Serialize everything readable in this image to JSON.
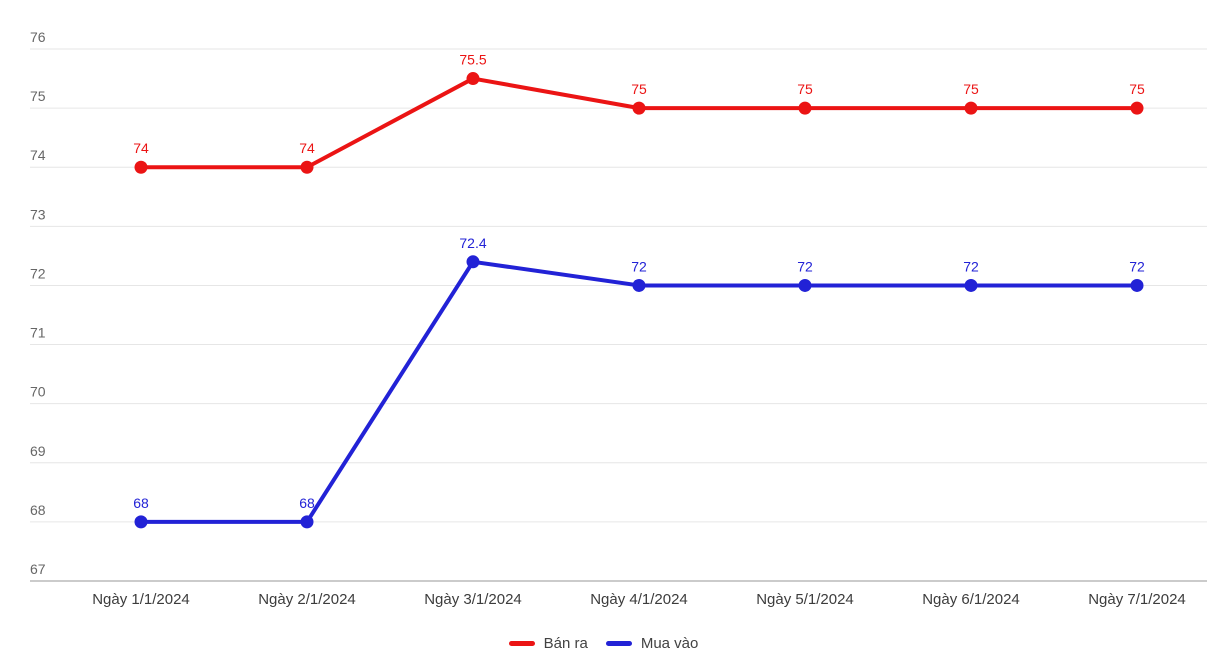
{
  "chart_data": {
    "type": "line",
    "title": "",
    "xlabel": "",
    "ylabel": "",
    "categories": [
      "Ngày 1/1/2024",
      "Ngày 2/1/2024",
      "Ngày 3/1/2024",
      "Ngày 4/1/2024",
      "Ngày 5/1/2024",
      "Ngày 6/1/2024",
      "Ngày 7/1/2024"
    ],
    "series": [
      {
        "name": "Bán ra",
        "color": "#eb1414",
        "values": [
          74,
          74,
          75.5,
          75,
          75,
          75,
          75
        ]
      },
      {
        "name": "Mua vào",
        "color": "#2222d6",
        "values": [
          68,
          68,
          72.4,
          72,
          72,
          72,
          72
        ]
      }
    ],
    "ylim": [
      67,
      76
    ],
    "yticks": [
      76,
      75,
      74,
      73,
      72,
      71,
      70,
      69,
      68,
      67
    ],
    "grid": true,
    "data_labels": true,
    "legend_position": "bottom"
  },
  "style": {
    "background": "#ffffff",
    "grid_color": "#e6e6e6",
    "axis_line_color": "#cbcbcb",
    "y_tick_color": "#666666",
    "x_tick_color": "#3c3c3c",
    "legend_text_color": "#424242"
  }
}
